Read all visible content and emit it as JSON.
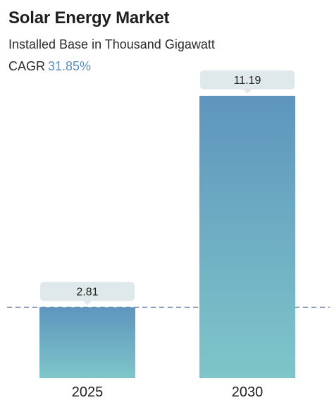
{
  "header": {
    "title": "Solar Energy Market",
    "subtitle": "Installed Base in Thousand Gigawatt",
    "cagr_label": "CAGR",
    "cagr_value": "31.85%"
  },
  "colors": {
    "bar_top": "#5f95bd",
    "bar_bottom": "#7ec6c9",
    "label_bg": "#dfe8ea",
    "reference_line": "#5b7fa6",
    "cagr_accent": "#5b8fc0"
  },
  "chart_data": {
    "type": "bar",
    "categories": [
      "2025",
      "2030"
    ],
    "values": [
      2.81,
      11.19
    ],
    "data_labels": [
      "2.81",
      "11.19"
    ],
    "ylim": [
      0,
      11.19
    ],
    "grid": false,
    "reference_line": {
      "value": 2.81,
      "style": "dashed"
    }
  }
}
